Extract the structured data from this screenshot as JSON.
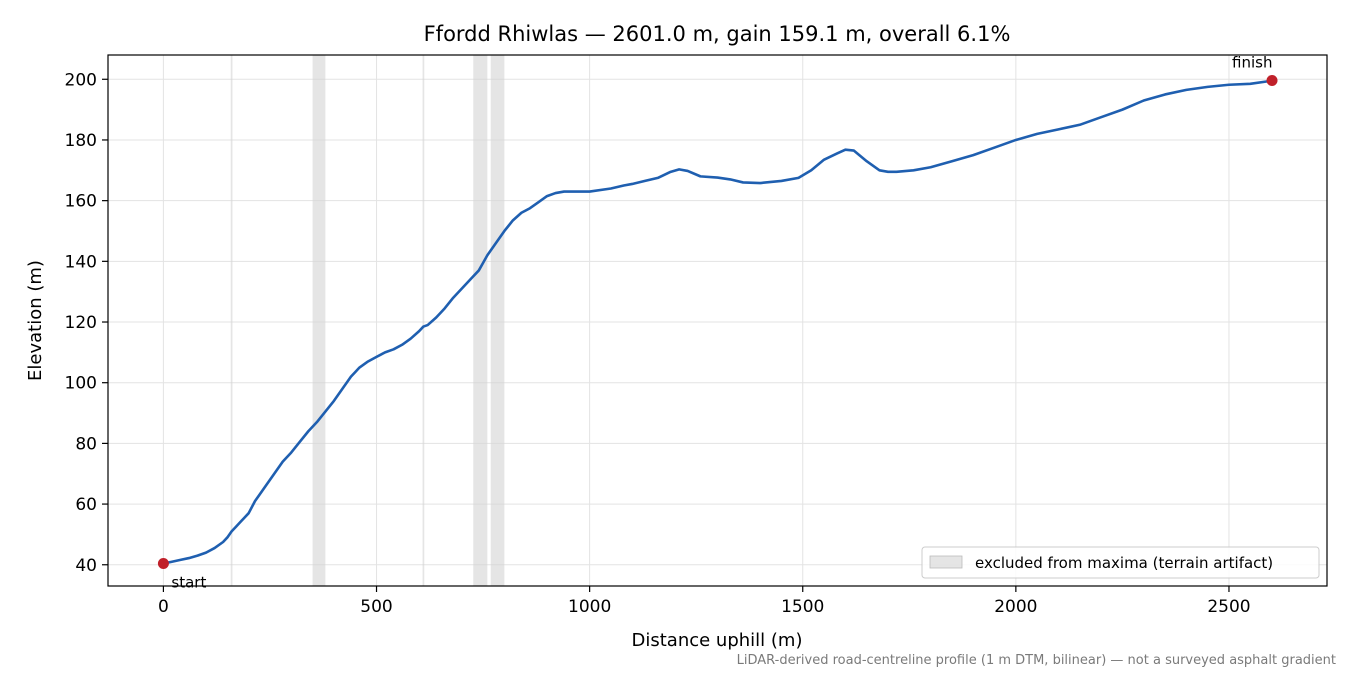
{
  "chart_data": {
    "type": "line",
    "title": "Ffordd Rhiwlas — 2601.0 m, gain 159.1 m, overall 6.1%",
    "xlabel": "Distance uphill (m)",
    "ylabel": "Elevation (m)",
    "xlim": [
      -130,
      2730
    ],
    "ylim": [
      33,
      208
    ],
    "xticks": [
      0,
      500,
      1000,
      1500,
      2000,
      2500
    ],
    "yticks": [
      40,
      60,
      80,
      100,
      120,
      140,
      160,
      180,
      200
    ],
    "grid": true,
    "line_color": "#1f5fb0",
    "marker_color": "#c0202a",
    "band_color": "#d3d3d3",
    "excluded_ranges": [
      [
        158,
        162
      ],
      [
        350,
        380
      ],
      [
        608,
        612
      ],
      [
        727,
        760
      ],
      [
        768,
        800
      ]
    ],
    "legend": {
      "label": "excluded from maxima (terrain artifact)",
      "placement": "lower-right"
    },
    "series": [
      {
        "x": [
          0,
          20,
          40,
          60,
          80,
          100,
          120,
          140,
          150,
          160,
          170,
          180,
          190,
          200,
          215,
          225,
          240,
          260,
          280,
          300,
          320,
          340,
          360,
          380,
          400,
          420,
          440,
          450,
          460,
          480,
          500,
          520,
          540,
          560,
          580,
          600,
          610,
          620,
          640,
          660,
          680,
          700,
          720,
          740,
          750,
          760,
          780,
          800,
          820,
          840,
          860,
          880,
          900,
          920,
          940,
          960,
          980,
          1000,
          1050,
          1080,
          1100,
          1130,
          1160,
          1190,
          1210,
          1230,
          1260,
          1300,
          1330,
          1360,
          1400,
          1450,
          1490,
          1520,
          1550,
          1580,
          1600,
          1620,
          1650,
          1680,
          1700,
          1720,
          1760,
          1800,
          1850,
          1900,
          1950,
          2000,
          2050,
          2100,
          2150,
          2200,
          2250,
          2300,
          2350,
          2400,
          2450,
          2500,
          2550,
          2590,
          2601
        ],
        "y": [
          40.4,
          41.0,
          41.6,
          42.2,
          43.0,
          44.0,
          45.5,
          47.5,
          49.0,
          51.0,
          52.5,
          54.0,
          55.5,
          57.0,
          61.0,
          63.0,
          66.0,
          70.0,
          74.0,
          77.0,
          80.5,
          84.0,
          87.0,
          90.5,
          94.0,
          98.0,
          102.0,
          103.5,
          105.0,
          107.0,
          108.5,
          110.0,
          111.0,
          112.5,
          114.5,
          117.0,
          118.5,
          119.0,
          121.5,
          124.5,
          128.0,
          131.0,
          134.0,
          137.0,
          139.5,
          142.0,
          146.0,
          150.0,
          153.5,
          156.0,
          157.5,
          159.5,
          161.5,
          162.5,
          163.0,
          163.0,
          163.0,
          163.0,
          164.0,
          165.0,
          165.5,
          166.5,
          167.5,
          169.5,
          170.3,
          169.8,
          168.0,
          167.6,
          167.0,
          166.0,
          165.8,
          166.5,
          167.5,
          170.0,
          173.5,
          175.5,
          176.8,
          176.5,
          173.0,
          170.0,
          169.5,
          169.5,
          170.0,
          171.0,
          173.0,
          175.0,
          177.5,
          180.0,
          182.0,
          183.5,
          185.0,
          187.5,
          190.0,
          193.0,
          195.0,
          196.5,
          197.5,
          198.2,
          198.5,
          199.3,
          199.6
        ]
      }
    ],
    "annotations": [
      {
        "text": "start",
        "x": 0,
        "y": 40.4
      },
      {
        "text": "finish",
        "x": 2601,
        "y": 199.6
      }
    ],
    "footnote": "LiDAR-derived road-centreline profile (1 m DTM, bilinear) — not a surveyed asphalt gradient"
  }
}
